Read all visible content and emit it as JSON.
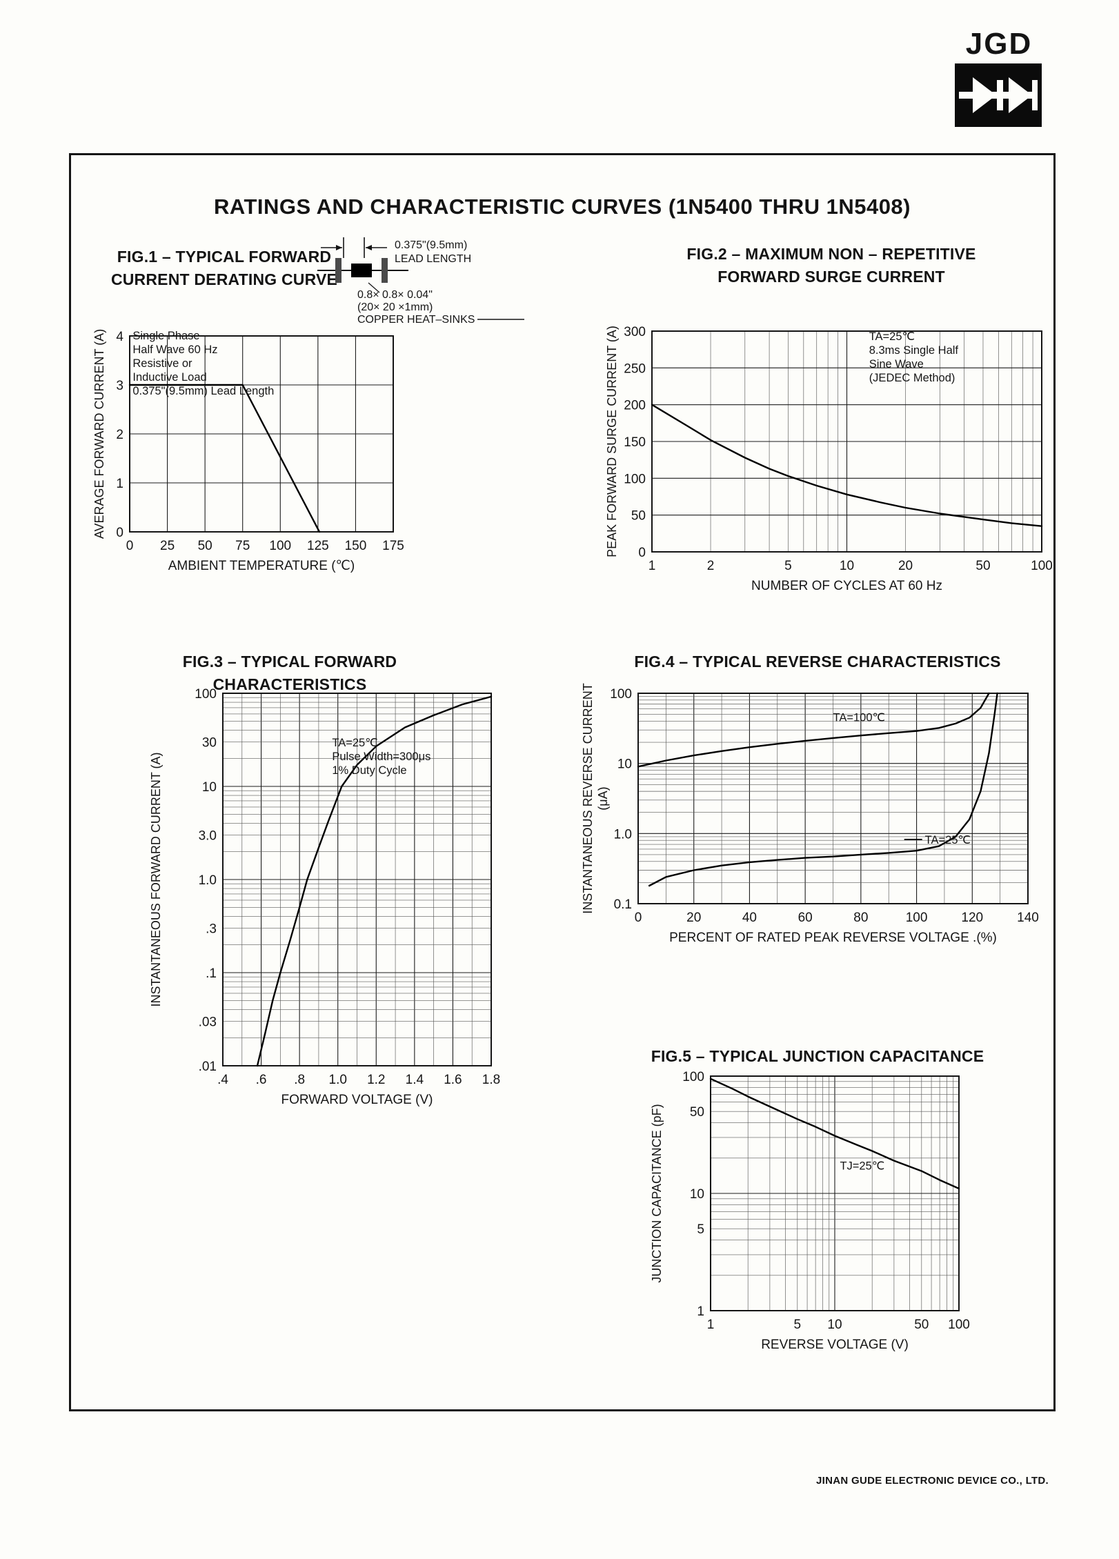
{
  "page": {
    "logo": "JGD",
    "title": "RATINGS AND CHARACTERISTIC CURVES (1N5400 THRU 1N5408)",
    "footer": "JINAN GUDE ELECTRONIC DEVICE CO., LTD."
  },
  "chart_data": [
    {
      "id": "fig1",
      "type": "line",
      "title": [
        "FIG.1 – TYPICAL FORWARD",
        "CURRENT DERATING CURVE"
      ],
      "xlabel": "AMBIENT TEMPERATURE (℃)",
      "ylabel": [
        "AVERAGE FORWARD CURRENT (A)"
      ],
      "x": {
        "scale": "linear",
        "min": 0,
        "max": 175,
        "ticks": [
          [
            0,
            "0"
          ],
          [
            25,
            "25"
          ],
          [
            50,
            "50"
          ],
          [
            75,
            "75"
          ],
          [
            100,
            "100"
          ],
          [
            125,
            "125"
          ],
          [
            150,
            "150"
          ],
          [
            175,
            "175"
          ]
        ]
      },
      "y": {
        "scale": "linear",
        "min": 0,
        "max": 4,
        "ticks": [
          [
            0,
            "0"
          ],
          [
            1,
            "1"
          ],
          [
            2,
            "2"
          ],
          [
            3,
            "3"
          ],
          [
            4,
            "4"
          ]
        ]
      },
      "series": [
        {
          "name": "average forward current derating",
          "points": [
            [
              0,
              3
            ],
            [
              75,
              3
            ],
            [
              126,
              0
            ]
          ]
        }
      ],
      "annotations": [
        {
          "x": 2,
          "y": 3.93,
          "lines": [
            "Single Phase",
            "Half Wave 60 Hz",
            "Resistive or",
            "Inductive Load",
            "0.375\"(9.5mm) Lead Length"
          ]
        }
      ],
      "inset": {
        "dim_label": [
          "0.375\"(9.5mm)",
          "LEAD LENGTH"
        ],
        "hs_label": [
          "0.8× 0.8× 0.04\"",
          "(20× 20 ×1mm)",
          "COPPER HEAT–SINKS"
        ]
      }
    },
    {
      "id": "fig2",
      "type": "line",
      "title": [
        "FIG.2 – MAXIMUM NON – REPETITIVE",
        "FORWARD SURGE CURRENT"
      ],
      "xlabel": "NUMBER OF CYCLES AT 60 Hz",
      "ylabel": [
        "PEAK FORWARD SURGE CURRENT (A)"
      ],
      "x": {
        "scale": "log",
        "min": 1,
        "max": 100,
        "ticks": [
          [
            1,
            "1"
          ],
          [
            2,
            "2"
          ],
          [
            5,
            "5"
          ],
          [
            10,
            "10"
          ],
          [
            20,
            "20"
          ],
          [
            50,
            "50"
          ],
          [
            100,
            "100"
          ]
        ]
      },
      "y": {
        "scale": "linear",
        "min": 0,
        "max": 300,
        "ticks": [
          [
            0,
            "0"
          ],
          [
            50,
            "50"
          ],
          [
            100,
            "100"
          ],
          [
            150,
            "150"
          ],
          [
            200,
            "200"
          ],
          [
            250,
            "250"
          ],
          [
            300,
            "300"
          ]
        ]
      },
      "series": [
        {
          "name": "peak forward surge current",
          "points": [
            [
              1,
              200
            ],
            [
              1.5,
              172
            ],
            [
              2,
              152
            ],
            [
              3,
              128
            ],
            [
              4,
              113
            ],
            [
              5,
              103
            ],
            [
              7,
              90
            ],
            [
              10,
              78
            ],
            [
              15,
              67
            ],
            [
              20,
              60
            ],
            [
              30,
              52
            ],
            [
              50,
              44
            ],
            [
              70,
              39
            ],
            [
              100,
              35
            ]
          ]
        }
      ],
      "annotations": [
        {
          "x": 13,
          "y": 288,
          "lines": [
            "TA=25℃",
            "8.3ms Single Half",
            "Sine Wave",
            "(JEDEC Method)"
          ]
        }
      ]
    },
    {
      "id": "fig3",
      "type": "line",
      "title": [
        "FIG.3 – TYPICAL FORWARD CHARACTERISTICS"
      ],
      "xlabel": "FORWARD VOLTAGE (V)",
      "ylabel": [
        "INSTANTANEOUS FORWARD CURRENT (A)"
      ],
      "x": {
        "scale": "linear",
        "min": 0.4,
        "max": 1.8,
        "minor_step": 0.1,
        "ticks": [
          [
            0.4,
            ".4"
          ],
          [
            0.6,
            ".6"
          ],
          [
            0.8,
            ".8"
          ],
          [
            1.0,
            "1.0"
          ],
          [
            1.2,
            "1.2"
          ],
          [
            1.4,
            "1.4"
          ],
          [
            1.6,
            "1.6"
          ],
          [
            1.8,
            "1.8"
          ]
        ]
      },
      "y": {
        "scale": "log",
        "min": 0.01,
        "max": 100,
        "ticks": [
          [
            100,
            "100"
          ],
          [
            30,
            "30"
          ],
          [
            10,
            "10"
          ],
          [
            3,
            "3.0"
          ],
          [
            1,
            "1.0"
          ],
          [
            0.3,
            ".3"
          ],
          [
            0.1,
            ".1"
          ],
          [
            0.03,
            ".03"
          ],
          [
            0.01,
            ".01"
          ]
        ]
      },
      "series": [
        {
          "name": "TA=25℃ forward characteristic",
          "points": [
            [
              0.58,
              0.01
            ],
            [
              0.62,
              0.022
            ],
            [
              0.66,
              0.05
            ],
            [
              0.7,
              0.1
            ],
            [
              0.75,
              0.22
            ],
            [
              0.8,
              0.5
            ],
            [
              0.84,
              1.0
            ],
            [
              0.9,
              2.2
            ],
            [
              0.95,
              4.2
            ],
            [
              1.02,
              10
            ],
            [
              1.1,
              17
            ],
            [
              1.2,
              27
            ],
            [
              1.35,
              43
            ],
            [
              1.5,
              58
            ],
            [
              1.65,
              76
            ],
            [
              1.8,
              92
            ]
          ]
        }
      ],
      "annotations": [
        {
          "x": 0.97,
          "y": 27,
          "lines": [
            "TA=25℃",
            "Pulse Width=300μs",
            "1% Duty Cycle"
          ]
        }
      ]
    },
    {
      "id": "fig4",
      "type": "line",
      "title": [
        "FIG.4 – TYPICAL REVERSE CHARACTERISTICS"
      ],
      "xlabel": "PERCENT OF RATED PEAK REVERSE VOLTAGE .(%)",
      "ylabel": [
        "INSTANTANEOUS REVERSE CURRENT",
        "(μA)"
      ],
      "x": {
        "scale": "linear",
        "min": 0,
        "max": 140,
        "minor_step": 10,
        "ticks": [
          [
            0,
            "0"
          ],
          [
            20,
            "20"
          ],
          [
            40,
            "40"
          ],
          [
            60,
            "60"
          ],
          [
            80,
            "80"
          ],
          [
            100,
            "100"
          ],
          [
            120,
            "120"
          ],
          [
            140,
            "140"
          ]
        ]
      },
      "y": {
        "scale": "log",
        "min": 0.1,
        "max": 100,
        "ticks": [
          [
            100,
            "100"
          ],
          [
            10,
            "10"
          ],
          [
            1,
            "1.0"
          ],
          [
            0.1,
            "0.1"
          ]
        ]
      },
      "series": [
        {
          "name": "TA=100℃",
          "points": [
            [
              0,
              9
            ],
            [
              10,
              11
            ],
            [
              20,
              13
            ],
            [
              30,
              15
            ],
            [
              40,
              17
            ],
            [
              50,
              19
            ],
            [
              60,
              21
            ],
            [
              70,
              23
            ],
            [
              80,
              25
            ],
            [
              90,
              27
            ],
            [
              100,
              29
            ],
            [
              108,
              32
            ],
            [
              114,
              37
            ],
            [
              119,
              45
            ],
            [
              123,
              62
            ],
            [
              126,
              100
            ]
          ]
        },
        {
          "name": "TA=25℃",
          "points": [
            [
              4,
              0.18
            ],
            [
              10,
              0.24
            ],
            [
              20,
              0.3
            ],
            [
              30,
              0.35
            ],
            [
              40,
              0.39
            ],
            [
              50,
              0.42
            ],
            [
              60,
              0.45
            ],
            [
              70,
              0.47
            ],
            [
              80,
              0.5
            ],
            [
              90,
              0.53
            ],
            [
              100,
              0.57
            ],
            [
              108,
              0.66
            ],
            [
              114,
              0.9
            ],
            [
              119,
              1.6
            ],
            [
              123,
              4
            ],
            [
              126,
              14
            ],
            [
              128,
              50
            ],
            [
              129,
              100
            ]
          ]
        }
      ],
      "annotations": [
        {
          "x": 70,
          "y": 40,
          "lines": [
            "TA=100℃"
          ]
        },
        {
          "x": 103,
          "y": 0.72,
          "dash": true,
          "lines": [
            "TA=25℃"
          ]
        }
      ]
    },
    {
      "id": "fig5",
      "type": "line",
      "title": [
        "FIG.5 – TYPICAL JUNCTION CAPACITANCE"
      ],
      "xlabel": "REVERSE VOLTAGE  (V)",
      "ylabel": [
        "JUNCTION CAPACITANCE (pF)"
      ],
      "x": {
        "scale": "log",
        "min": 1,
        "max": 100,
        "ticks": [
          [
            1,
            "1"
          ],
          [
            5,
            "5"
          ],
          [
            10,
            "10"
          ],
          [
            50,
            "50"
          ],
          [
            100,
            "100"
          ]
        ]
      },
      "y": {
        "scale": "log",
        "min": 1,
        "max": 100,
        "ticks": [
          [
            100,
            "100"
          ],
          [
            50,
            "50"
          ],
          [
            10,
            "10"
          ],
          [
            5,
            "5"
          ],
          [
            1,
            "1"
          ]
        ]
      },
      "series": [
        {
          "name": "TJ=25℃ junction capacitance",
          "points": [
            [
              1,
              95
            ],
            [
              1.5,
              78
            ],
            [
              2,
              67
            ],
            [
              3,
              55
            ],
            [
              5,
              43
            ],
            [
              7,
              37
            ],
            [
              10,
              31
            ],
            [
              15,
              26
            ],
            [
              20,
              23
            ],
            [
              30,
              19
            ],
            [
              50,
              15.5
            ],
            [
              70,
              13
            ],
            [
              100,
              11
            ]
          ]
        }
      ],
      "annotations": [
        {
          "x": 11,
          "y": 16,
          "lines": [
            "TJ=25℃"
          ]
        }
      ]
    }
  ]
}
